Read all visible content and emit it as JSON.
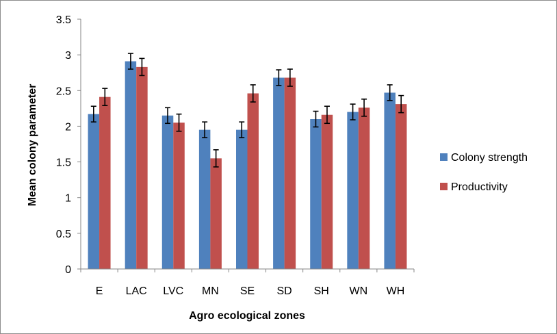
{
  "chart_data": {
    "type": "bar",
    "title": "",
    "xlabel": "Agro ecological zones",
    "ylabel": "Mean colony parameter",
    "categories": [
      "E",
      "LAC",
      "LVC",
      "MN",
      "SE",
      "SD",
      "SH",
      "WN",
      "WH"
    ],
    "ylim": [
      0,
      3.5
    ],
    "yticks": [
      0,
      0.5,
      1,
      1.5,
      2,
      2.5,
      3,
      3.5
    ],
    "ytick_labels": [
      "0",
      "0.5",
      "1",
      "1.5",
      "2",
      "2.5",
      "3",
      "3.5"
    ],
    "grid": false,
    "legend_position": "right",
    "series": [
      {
        "name": "Colony strength",
        "color": "#4F81BD",
        "values": [
          2.17,
          2.91,
          2.15,
          1.95,
          1.95,
          2.68,
          2.1,
          2.2,
          2.47
        ],
        "error": [
          0.11,
          0.11,
          0.11,
          0.11,
          0.11,
          0.11,
          0.11,
          0.11,
          0.11
        ]
      },
      {
        "name": "Productivity",
        "color": "#C0504D",
        "values": [
          2.41,
          2.83,
          2.05,
          1.55,
          2.46,
          2.68,
          2.16,
          2.26,
          2.31
        ],
        "error": [
          0.12,
          0.12,
          0.12,
          0.12,
          0.12,
          0.12,
          0.12,
          0.12,
          0.12
        ]
      }
    ]
  }
}
